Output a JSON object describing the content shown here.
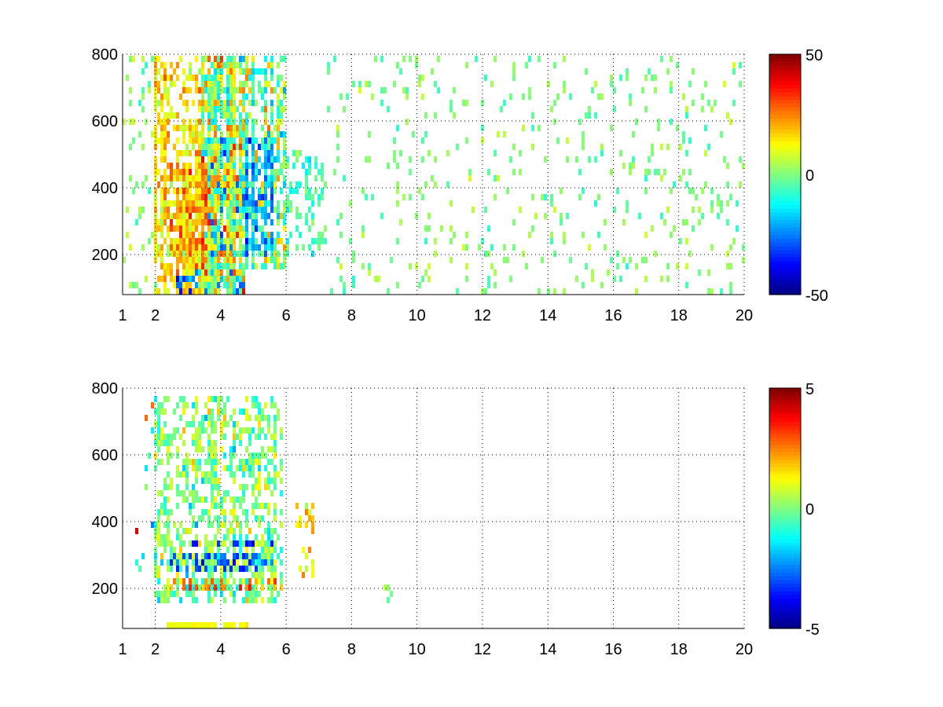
{
  "chart_data": [
    {
      "type": "heatmap",
      "title": "",
      "xlabel": "",
      "ylabel": "",
      "xlim": [
        1,
        20
      ],
      "ylim": [
        80,
        800
      ],
      "xticks": [
        1,
        2,
        4,
        6,
        8,
        10,
        12,
        14,
        16,
        18,
        20
      ],
      "yticks": [
        200,
        400,
        600,
        800
      ],
      "grid": true,
      "colormap": "jet",
      "colorbar": {
        "range": [
          -50,
          50
        ],
        "ticks": [
          50,
          0,
          -50
        ]
      },
      "seed": 11,
      "features": [
        {
          "x": [
            2.0,
            3.4
          ],
          "y": [
            80,
            800
          ],
          "density": 0.55,
          "mean": 15,
          "spread": 12
        },
        {
          "x": [
            2.4,
            3.6
          ],
          "y": [
            150,
            470
          ],
          "density": 0.85,
          "mean": 25,
          "spread": 12
        },
        {
          "x": [
            3.4,
            4.7
          ],
          "y": [
            80,
            800
          ],
          "density": 0.8,
          "mean": 5,
          "spread": 28
        },
        {
          "x": [
            3.6,
            5.6
          ],
          "y": [
            200,
            560
          ],
          "density": 0.75,
          "mean": -20,
          "spread": 20
        },
        {
          "x": [
            4.7,
            6.0
          ],
          "y": [
            150,
            800
          ],
          "density": 0.55,
          "mean": 0,
          "spread": 22
        },
        {
          "x": [
            2.5,
            4.7
          ],
          "y": [
            80,
            150
          ],
          "density": 0.75,
          "mean": -25,
          "spread": 15
        },
        {
          "x": [
            6.0,
            7.2
          ],
          "y": [
            200,
            520
          ],
          "density": 0.3,
          "mean": -5,
          "spread": 10
        },
        {
          "x": [
            1.0,
            2.0
          ],
          "y": [
            80,
            800
          ],
          "density": 0.12,
          "mean": 2,
          "spread": 8
        },
        {
          "x": [
            7.2,
            20.0
          ],
          "y": [
            80,
            800
          ],
          "density": 0.09,
          "mean": 0,
          "spread": 8
        }
      ]
    },
    {
      "type": "heatmap",
      "title": "",
      "xlabel": "",
      "ylabel": "",
      "xlim": [
        1,
        20
      ],
      "ylim": [
        80,
        800
      ],
      "xticks": [
        1,
        2,
        4,
        6,
        8,
        10,
        12,
        14,
        16,
        18,
        20
      ],
      "yticks": [
        200,
        400,
        600,
        800
      ],
      "grid": true,
      "colormap": "jet",
      "colorbar": {
        "range": [
          -5,
          5
        ],
        "ticks": [
          5,
          0,
          -5
        ]
      },
      "seed": 29,
      "features": [
        {
          "x": [
            2.0,
            5.9
          ],
          "y": [
            150,
            790
          ],
          "density": 0.45,
          "mean": 0,
          "spread": 1.6
        },
        {
          "x": [
            2.4,
            5.6
          ],
          "y": [
            260,
            300
          ],
          "density": 0.85,
          "mean": -3.2,
          "spread": 1.0
        },
        {
          "x": [
            3.0,
            5.8
          ],
          "y": [
            325,
            350
          ],
          "density": 0.8,
          "mean": -3.6,
          "spread": 1.0
        },
        {
          "x": [
            2.5,
            5.8
          ],
          "y": [
            200,
            240
          ],
          "density": 0.7,
          "mean": 2.5,
          "spread": 1.2
        },
        {
          "x": [
            2.3,
            4.8
          ],
          "y": [
            85,
            105
          ],
          "density": 0.9,
          "mean": 1.2,
          "spread": 0.4
        },
        {
          "x": [
            6.3,
            6.9
          ],
          "y": [
            240,
            480
          ],
          "density": 0.3,
          "mean": 1.5,
          "spread": 1.5
        },
        {
          "x": [
            9.0,
            9.3
          ],
          "y": [
            150,
            220
          ],
          "density": 0.5,
          "mean": 0,
          "spread": 1.5
        },
        {
          "x": [
            1.4,
            2.2
          ],
          "y": [
            200,
            760
          ],
          "density": 0.08,
          "mean": 0,
          "spread": 4
        }
      ]
    }
  ]
}
